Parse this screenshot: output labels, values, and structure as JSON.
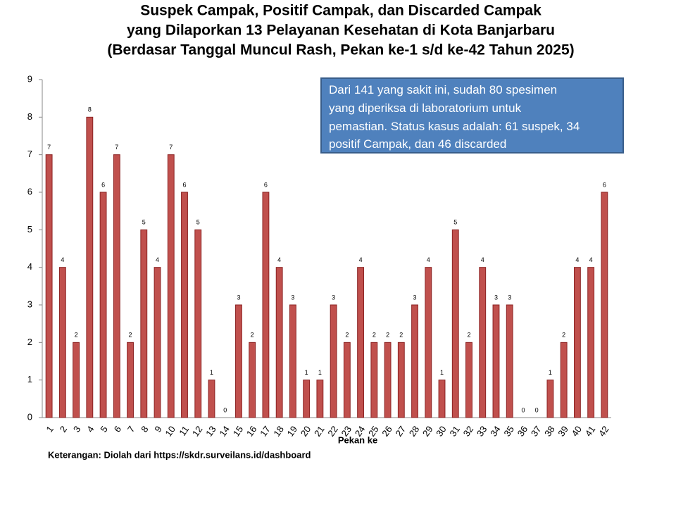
{
  "chart_data": {
    "type": "bar",
    "title": [
      "Suspek Campak, Positif Campak, dan Discarded Campak",
      "yang Dilaporkan 13 Pelayanan Kesehatan di Kota Banjarbaru",
      "(Berdasar Tanggal Muncul Rash, Pekan ke-1 s/d ke-42 Tahun 2025)"
    ],
    "annotation": [
      "Dari 141 yang sakit ini, sudah 80 spesimen",
      "yang diperiksa di laboratorium untuk",
      "pemastian.  Status kasus adalah: 61 suspek, 34",
      "positif Campak, dan 46 discarded"
    ],
    "x_label": "Pekan ke",
    "note": "Keterangan: Diolah dari https://skdr.surveilans.id/dashboard",
    "categories": [
      "1",
      "2",
      "3",
      "4",
      "5",
      "6",
      "7",
      "8",
      "9",
      "10",
      "11",
      "12",
      "13",
      "14",
      "15",
      "16",
      "17",
      "18",
      "19",
      "20",
      "21",
      "22",
      "23",
      "24",
      "25",
      "26",
      "27",
      "28",
      "29",
      "30",
      "31",
      "32",
      "33",
      "34",
      "35",
      "36",
      "37",
      "38",
      "39",
      "40",
      "41",
      "42"
    ],
    "values": [
      7,
      4,
      2,
      8,
      6,
      7,
      2,
      5,
      4,
      7,
      6,
      5,
      1,
      0,
      3,
      2,
      6,
      4,
      3,
      1,
      1,
      3,
      2,
      4,
      2,
      2,
      2,
      3,
      4,
      1,
      5,
      2,
      4,
      3,
      3,
      0,
      0,
      1,
      2,
      4,
      4,
      6
    ],
    "color": "#c0504d",
    "ylim": [
      0,
      9
    ],
    "yticks": [
      0,
      1,
      2,
      3,
      4,
      5,
      6,
      7,
      8,
      9
    ],
    "grid": false
  }
}
